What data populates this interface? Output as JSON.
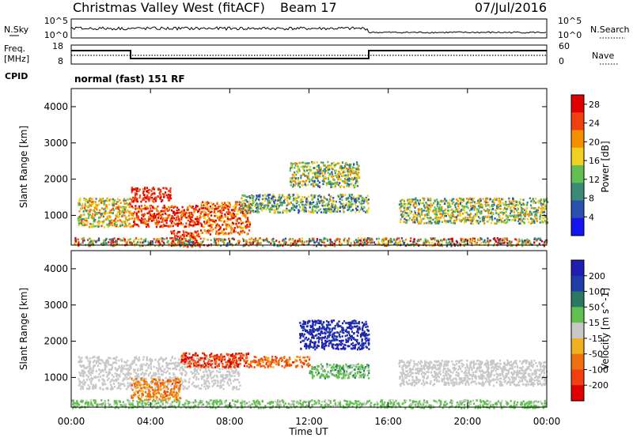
{
  "header": {
    "station": "Christmas Valley West (fitACF)",
    "beam": "Beam 17",
    "date": "07/Jul/2016"
  },
  "strips": {
    "nsky_label": "N.Sky",
    "nsky_ticks": [
      "10^5",
      "10^0"
    ],
    "nsearch_label": "N.Search",
    "nsearch_ticks": [
      "10^5",
      "10^0"
    ],
    "freq_label_1": "Freq.",
    "freq_label_2": "[MHz]",
    "freq_ticks": [
      "18",
      "8"
    ],
    "nave_label": "Nave",
    "nave_ticks": [
      "60",
      "0"
    ],
    "cpid_label": "CPID",
    "cpid_text": "normal (fast) 151 RF"
  },
  "colors": {
    "power_scale": [
      "#1414f0",
      "#2a50b0",
      "#3a8a78",
      "#63c050",
      "#f0d020",
      "#f49000",
      "#f04010",
      "#e00000"
    ],
    "velocity_scale": [
      "#1e1eb4",
      "#1e3ca8",
      "#2a7860",
      "#62c050",
      "#c8c8c8",
      "#f0b020",
      "#f07010",
      "#f04010",
      "#e00000"
    ],
    "gray_scatter": "#c8c8c8"
  },
  "chart_data": [
    {
      "type": "heatmap",
      "title": "",
      "xlabel": "Time UT",
      "ylabel": "Slant Range [km]",
      "x_ticks": [
        "00:00",
        "04:00",
        "08:00",
        "12:00",
        "16:00",
        "20:00",
        "00:00"
      ],
      "xlim_hours": [
        0,
        24
      ],
      "y_ticks": [
        1000,
        2000,
        3000,
        4000
      ],
      "ylim": [
        180,
        4500
      ],
      "colorbar": {
        "label": "Power [dB]",
        "ticks": [
          4,
          8,
          12,
          16,
          20,
          24,
          28
        ],
        "range": [
          0,
          30
        ]
      },
      "features": [
        {
          "hours": [
            0.3,
            3.0
          ],
          "range_km": [
            700,
            1500
          ],
          "power_db": [
            10,
            24
          ]
        },
        {
          "hours": [
            3.0,
            5.0
          ],
          "range_km": [
            1400,
            1800
          ],
          "power_db": [
            22,
            30
          ]
        },
        {
          "hours": [
            3.0,
            6.5
          ],
          "range_km": [
            700,
            1300
          ],
          "power_db": [
            20,
            30
          ]
        },
        {
          "hours": [
            5.0,
            6.5
          ],
          "range_km": [
            150,
            600
          ],
          "power_db": [
            20,
            30
          ]
        },
        {
          "hours": [
            6.5,
            9.0
          ],
          "range_km": [
            500,
            1400
          ],
          "power_db": [
            16,
            30
          ]
        },
        {
          "hours": [
            8.5,
            15.0
          ],
          "range_km": [
            1100,
            1600
          ],
          "power_db": [
            4,
            20
          ]
        },
        {
          "hours": [
            11.0,
            14.5
          ],
          "range_km": [
            1800,
            2500
          ],
          "power_db": [
            6,
            22
          ]
        },
        {
          "hours": [
            16.5,
            24.0
          ],
          "range_km": [
            800,
            1500
          ],
          "power_db": [
            6,
            22
          ]
        },
        {
          "hours": [
            0.0,
            24.0
          ],
          "range_km": [
            180,
            400
          ],
          "power_db": [
            4,
            30
          ]
        }
      ]
    },
    {
      "type": "heatmap",
      "title": "",
      "xlabel": "Time UT",
      "ylabel": "Slant Range [km]",
      "x_ticks": [
        "00:00",
        "04:00",
        "08:00",
        "12:00",
        "16:00",
        "20:00",
        "00:00"
      ],
      "xlim_hours": [
        0,
        24
      ],
      "y_ticks": [
        1000,
        2000,
        3000,
        4000
      ],
      "ylim": [
        180,
        4500
      ],
      "colorbar": {
        "label": "Velocity [m s^-1]",
        "ticks": [
          200,
          100,
          50,
          15,
          -15,
          -50,
          -100,
          -200
        ],
        "range": [
          -250,
          250
        ]
      },
      "features": [
        {
          "hours": [
            0.3,
            8.5
          ],
          "range_km": [
            700,
            1600
          ],
          "velocity_ms": [
            -15,
            15
          ]
        },
        {
          "hours": [
            3.0,
            5.5
          ],
          "range_km": [
            400,
            1000
          ],
          "velocity_ms": [
            -150,
            -50
          ]
        },
        {
          "hours": [
            5.5,
            9.0
          ],
          "range_km": [
            1300,
            1700
          ],
          "velocity_ms": [
            -250,
            -100
          ]
        },
        {
          "hours": [
            9.0,
            12.0
          ],
          "range_km": [
            1300,
            1600
          ],
          "velocity_ms": [
            -200,
            -50
          ]
        },
        {
          "hours": [
            12.0,
            15.0
          ],
          "range_km": [
            1000,
            1400
          ],
          "velocity_ms": [
            15,
            100
          ]
        },
        {
          "hours": [
            11.5,
            15.0
          ],
          "range_km": [
            1800,
            2600
          ],
          "velocity_ms": [
            150,
            250
          ]
        },
        {
          "hours": [
            16.5,
            24.0
          ],
          "range_km": [
            800,
            1500
          ],
          "velocity_ms": [
            -15,
            15
          ]
        },
        {
          "hours": [
            0.0,
            24.0
          ],
          "range_km": [
            180,
            400
          ],
          "velocity_ms": [
            15,
            60
          ]
        }
      ]
    }
  ]
}
